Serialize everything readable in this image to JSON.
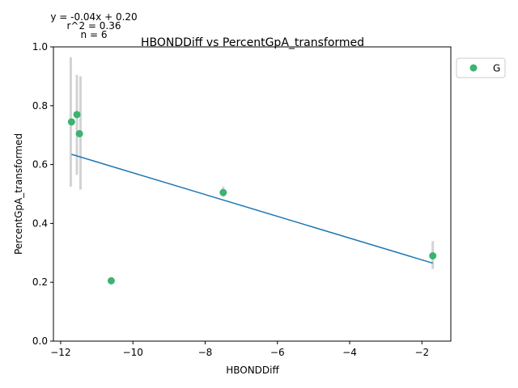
{
  "chart_data": {
    "type": "scatter",
    "title": "HBONDDiff vs PercentGpA_transformed",
    "xlabel": "HBONDDiff",
    "ylabel": "PercentGpA_transformed",
    "xlim": [
      -12.2,
      -1.2
    ],
    "ylim": [
      0.0,
      1.0
    ],
    "xticks": [
      -12,
      -10,
      -8,
      -6,
      -4,
      -2
    ],
    "xtick_labels": [
      "−12",
      "−10",
      "−8",
      "−6",
      "−4",
      "−2"
    ],
    "yticks": [
      0.0,
      0.2,
      0.4,
      0.6,
      0.8,
      1.0
    ],
    "ytick_labels": [
      "0.0",
      "0.2",
      "0.4",
      "0.6",
      "0.8",
      "1.0"
    ],
    "grid": false,
    "legend_position": "outside-right-top",
    "series": [
      {
        "name": "G",
        "color": "#3cb371",
        "points": [
          {
            "x": -11.7,
            "y": 0.745
          },
          {
            "x": -11.55,
            "y": 0.77
          },
          {
            "x": -11.48,
            "y": 0.705
          },
          {
            "x": -10.6,
            "y": 0.205
          },
          {
            "x": -7.5,
            "y": 0.505
          },
          {
            "x": -1.7,
            "y": 0.29
          }
        ]
      }
    ],
    "error_bars": {
      "color": "#d3d3d3",
      "bars": [
        {
          "x": -11.72,
          "low": 0.525,
          "high": 0.965
        },
        {
          "x": -11.55,
          "low": 0.565,
          "high": 0.905
        },
        {
          "x": -11.45,
          "low": 0.515,
          "high": 0.9
        },
        {
          "x": -7.5,
          "low": 0.49,
          "high": 0.525
        },
        {
          "x": -1.7,
          "low": 0.245,
          "high": 0.34
        }
      ]
    },
    "fit_line": {
      "color": "#1f77b4",
      "x_start": -11.7,
      "x_end": -1.7,
      "y_start": 0.635,
      "y_end": 0.265
    },
    "annotations": {
      "equation": "y = -0.04x + 0.20",
      "r2": "r^2 = 0.36",
      "n": "n = 6"
    }
  }
}
